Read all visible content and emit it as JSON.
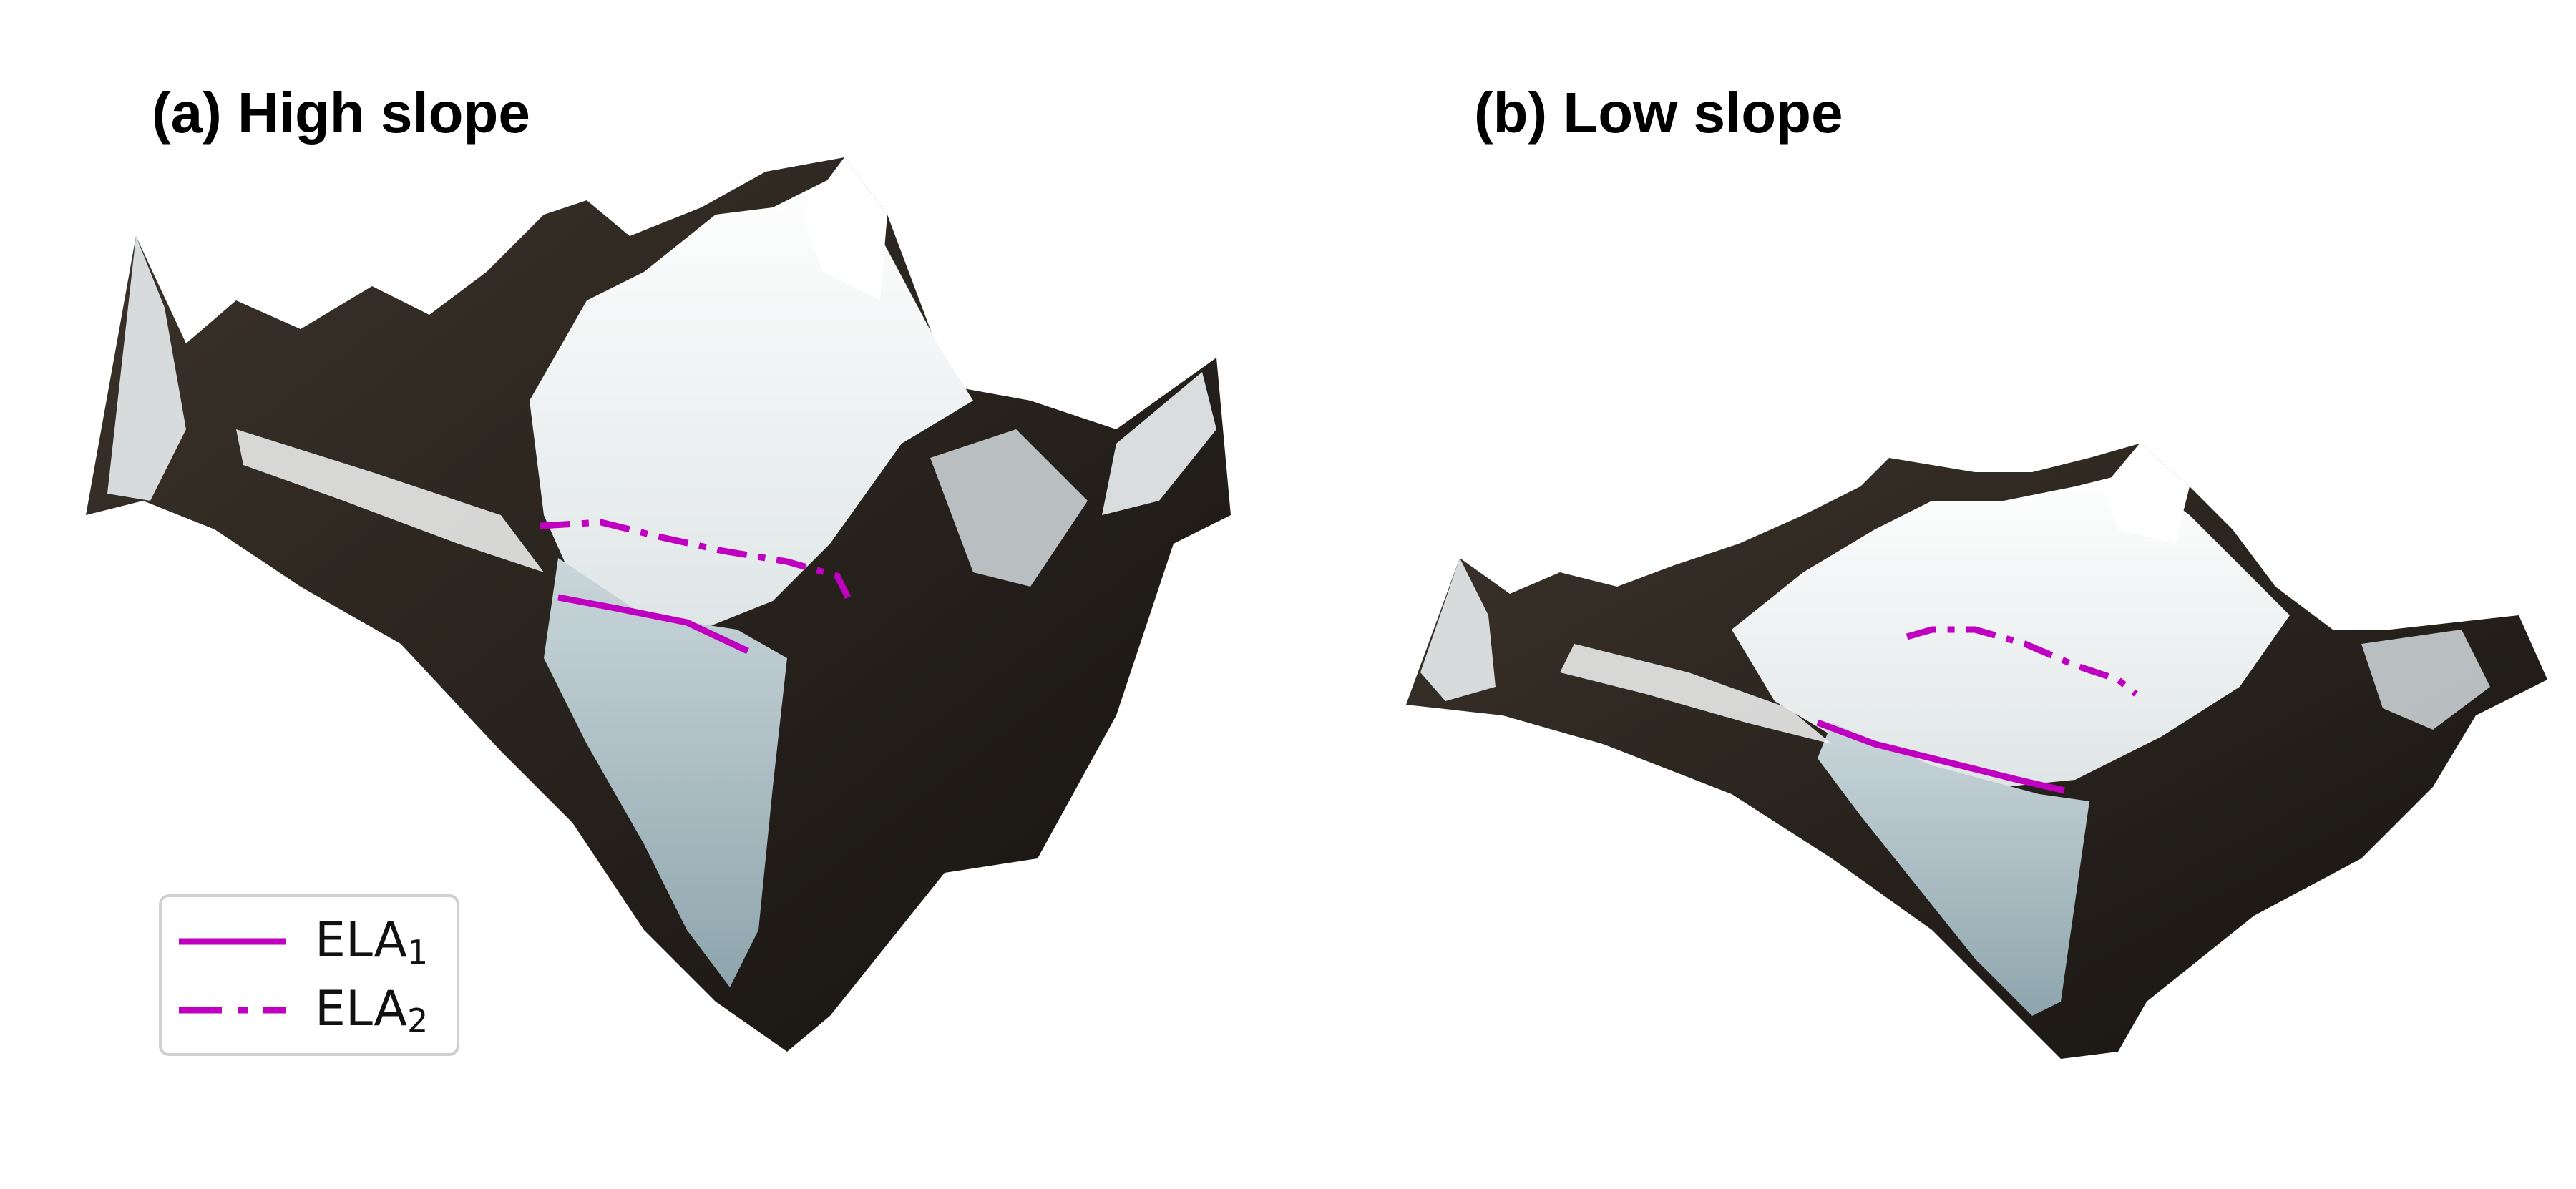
{
  "panels": [
    {
      "title": "(a) High slope"
    },
    {
      "title": "(b) Low slope"
    }
  ],
  "legend": {
    "entries": [
      {
        "label": "ELA",
        "subscript": "1",
        "style": "solid"
      },
      {
        "label": "ELA",
        "subscript": "2",
        "style": "dash-dot"
      }
    ]
  },
  "colors": {
    "ela_line": "#c000c0",
    "rock_dark": "#2a241e",
    "snow": "#f2f4f4",
    "ice": "#9fb6bf"
  }
}
